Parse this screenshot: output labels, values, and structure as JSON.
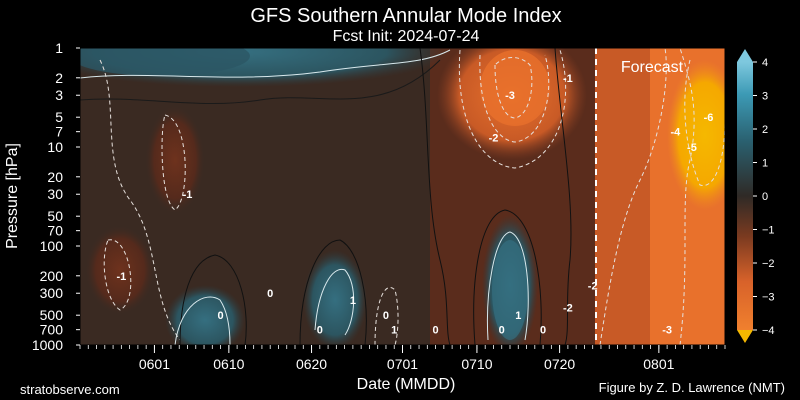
{
  "chart_data": {
    "type": "heatmap",
    "title": "GFS Southern Annular Mode Index",
    "subtitle": "Fcst Init: 2024-07-24",
    "xlabel": "Date (MMDD)",
    "ylabel": "Pressure [hPa]",
    "x_ticks": [
      "0601",
      "0610",
      "0620",
      "0701",
      "0710",
      "0720",
      "0801"
    ],
    "y_ticks": [
      "1",
      "2",
      "3",
      "5",
      "7",
      "10",
      "20",
      "30",
      "50",
      "70",
      "100",
      "200",
      "300",
      "500",
      "700",
      "1000"
    ],
    "y_scale": "log",
    "y_range": [
      1000,
      1
    ],
    "x_range": [
      "0523",
      "0809"
    ],
    "forecast_start": "0724",
    "forecast_label": "Forecast",
    "colorbar": {
      "range": [
        -4,
        4
      ],
      "ticks": [
        "4",
        "3",
        "2",
        "1",
        "0",
        "−1",
        "−2",
        "−3",
        "−4"
      ],
      "extend": "both",
      "negative_color": "#f0802e",
      "positive_color": "#3c9ab5",
      "extreme_negative_color": "#f5b800",
      "extreme_positive_color": "#7ec8de"
    },
    "contour_labels": [
      {
        "text": "-3",
        "x": "0714",
        "y": 3
      },
      {
        "text": "-1",
        "x": "0721",
        "y": 2
      },
      {
        "text": "-2",
        "x": "0712",
        "y": 8
      },
      {
        "text": "-1",
        "x": "0605",
        "y": 30
      },
      {
        "text": "-1",
        "x": "0528",
        "y": 200
      },
      {
        "text": "0",
        "x": "0615",
        "y": 300
      },
      {
        "text": "0",
        "x": "0609",
        "y": 500
      },
      {
        "text": "1",
        "x": "0625",
        "y": 350
      },
      {
        "text": "0",
        "x": "0621",
        "y": 700
      },
      {
        "text": "0",
        "x": "0629",
        "y": 500
      },
      {
        "text": "1",
        "x": "0630",
        "y": 700
      },
      {
        "text": "0",
        "x": "0705",
        "y": 700
      },
      {
        "text": "1",
        "x": "0715",
        "y": 500
      },
      {
        "text": "0",
        "x": "0713",
        "y": 700
      },
      {
        "text": "0",
        "x": "0718",
        "y": 700
      },
      {
        "text": "-2",
        "x": "0721",
        "y": 420
      },
      {
        "text": "-2",
        "x": "0724",
        "y": 250
      },
      {
        "text": "-4",
        "x": "0803",
        "y": 7
      },
      {
        "text": "-5",
        "x": "0805",
        "y": 10
      },
      {
        "text": "-6",
        "x": "0807",
        "y": 5
      },
      {
        "text": "-3",
        "x": "0802",
        "y": 700
      }
    ]
  },
  "footer": {
    "left": "stratobserve.com",
    "right": "Figure by Z. D. Lawrence (NMT)"
  }
}
